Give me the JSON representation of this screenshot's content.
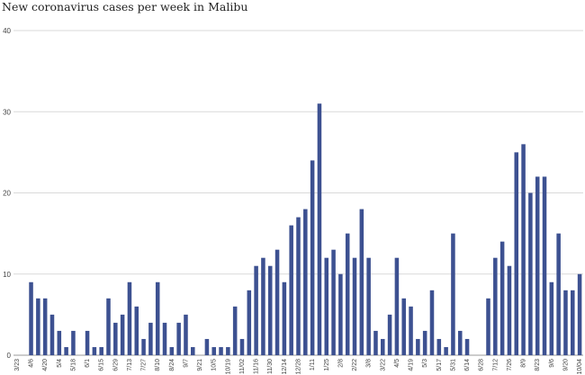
{
  "chart_data": {
    "type": "bar",
    "title": "New coronavirus cases per week in Malibu",
    "xlabel": "",
    "ylabel": "",
    "ylim": [
      0,
      40
    ],
    "yticks": [
      0,
      10,
      20,
      30,
      40
    ],
    "grid": true,
    "legend": "none",
    "bar_color": "#3d5191",
    "grid_color": "#d9d9d9",
    "categories": [
      "3/23",
      "3/30",
      "4/6",
      "4/13",
      "4/20",
      "4/27",
      "5/4",
      "5/11",
      "5/18",
      "5/25",
      "6/1",
      "6/8",
      "6/15",
      "6/22",
      "6/29",
      "7/6",
      "7/13",
      "7/20",
      "7/27",
      "8/3",
      "8/10",
      "8/17",
      "8/24",
      "8/31",
      "9/7",
      "9/14",
      "9/21",
      "9/28",
      "10/5",
      "10/12",
      "10/19",
      "10/26",
      "11/02",
      "11/09",
      "11/16",
      "11/23",
      "11/30",
      "12/07",
      "12/14",
      "12/21",
      "12/28",
      "1/4",
      "1/11",
      "1/18",
      "1/25",
      "2/1",
      "2/8",
      "2/15",
      "2/22",
      "3/1",
      "3/8",
      "3/15",
      "3/22",
      "3/29",
      "4/5",
      "4/12",
      "4/19",
      "4/26",
      "5/3",
      "5/10",
      "5/17",
      "5/24",
      "5/31",
      "6/7",
      "6/14",
      "6/21",
      "6/28",
      "7/5",
      "7/12",
      "7/19",
      "7/26",
      "8/2",
      "8/9",
      "8/16",
      "8/23",
      "8/30",
      "9/6",
      "9/13",
      "9/20",
      "9/27",
      "10/04"
    ],
    "x_tick_labels": [
      "3/23",
      "4/6",
      "4/20",
      "5/4",
      "5/18",
      "6/1",
      "6/15",
      "6/29",
      "7/13",
      "7/27",
      "8/10",
      "8/24",
      "9/7",
      "9/21",
      "10/5",
      "10/19",
      "11/02",
      "11/16",
      "11/30",
      "12/14",
      "12/28",
      "1/11",
      "1/25",
      "2/8",
      "2/22",
      "3/8",
      "3/22",
      "4/5",
      "4/19",
      "5/3",
      "5/17",
      "5/31",
      "6/14",
      "6/28",
      "7/12",
      "7/26",
      "8/9",
      "8/23",
      "9/6",
      "9/20",
      "10/04"
    ],
    "values": [
      0,
      0,
      9,
      7,
      7,
      5,
      3,
      1,
      3,
      0,
      3,
      1,
      1,
      7,
      4,
      5,
      9,
      6,
      2,
      4,
      9,
      4,
      1,
      4,
      5,
      1,
      0,
      2,
      1,
      1,
      1,
      6,
      2,
      8,
      11,
      12,
      11,
      13,
      9,
      16,
      17,
      18,
      24,
      31,
      12,
      13,
      10,
      15,
      12,
      18,
      12,
      3,
      2,
      5,
      12,
      7,
      6,
      2,
      3,
      8,
      2,
      1,
      15,
      3,
      2,
      0,
      0,
      7,
      12,
      14,
      11,
      25,
      26,
      20,
      22,
      22,
      9,
      15,
      8,
      8,
      10
    ]
  }
}
